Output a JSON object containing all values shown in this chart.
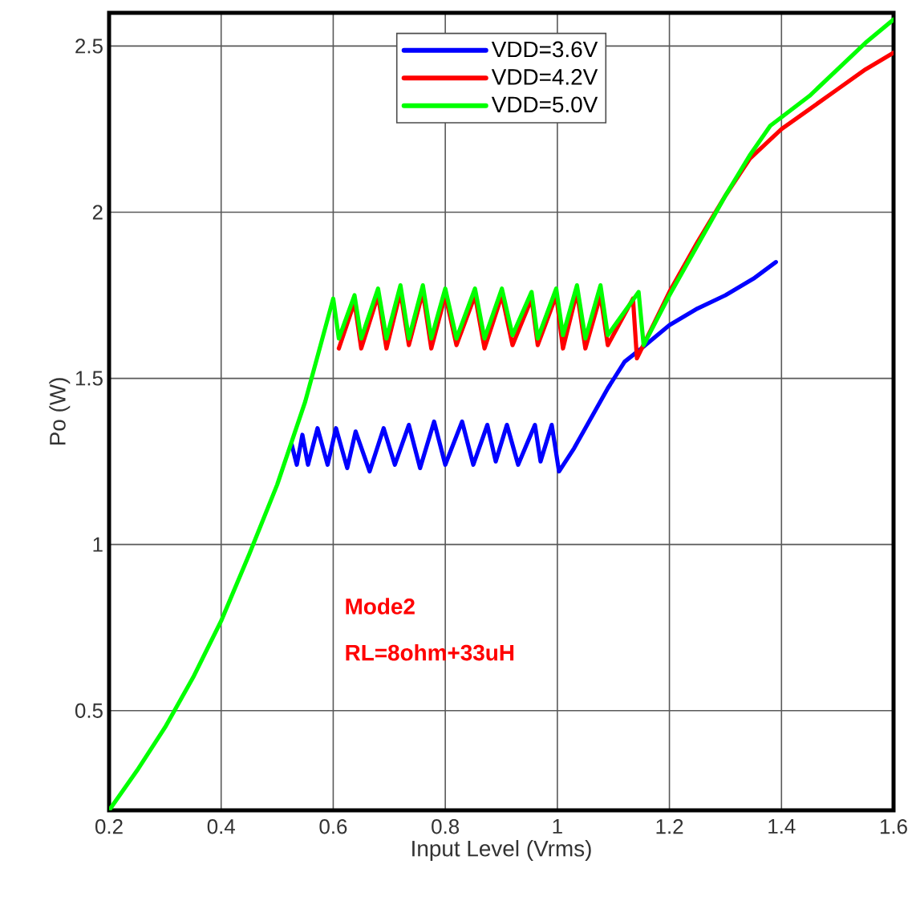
{
  "chart_data": {
    "type": "line",
    "xlabel": "Input Level (Vrms)",
    "ylabel": "Po (W)",
    "xlim": [
      0.2,
      1.6
    ],
    "ylim": [
      0.2,
      2.6
    ],
    "xticks": [
      0.2,
      0.4,
      0.6,
      0.8,
      1,
      1.2,
      1.4,
      1.6
    ],
    "yticks": [
      0.5,
      1,
      1.5,
      2,
      2.5
    ],
    "grid": true,
    "legend": "top",
    "marker": "none",
    "line_style": "solid",
    "annotations": [
      "Mode2",
      "RL=8ohm+33uH"
    ],
    "series": [
      {
        "name": "VDD=3.6V",
        "color": "#0000ff",
        "x": [
          0.526,
          0.535,
          0.545,
          0.555,
          0.572,
          0.59,
          0.605,
          0.625,
          0.64,
          0.665,
          0.69,
          0.71,
          0.735,
          0.755,
          0.78,
          0.8,
          0.83,
          0.85,
          0.875,
          0.89,
          0.91,
          0.93,
          0.96,
          0.97,
          0.99,
          1.003,
          1.03,
          1.06,
          1.09,
          1.12,
          1.15,
          1.2,
          1.25,
          1.3,
          1.35,
          1.39
        ],
        "values": [
          1.3,
          1.24,
          1.33,
          1.24,
          1.35,
          1.24,
          1.35,
          1.23,
          1.34,
          1.22,
          1.35,
          1.24,
          1.36,
          1.23,
          1.37,
          1.24,
          1.37,
          1.24,
          1.36,
          1.25,
          1.36,
          1.24,
          1.36,
          1.25,
          1.36,
          1.22,
          1.29,
          1.38,
          1.47,
          1.55,
          1.59,
          1.66,
          1.71,
          1.75,
          1.8,
          1.85
        ]
      },
      {
        "name": "VDD=4.2V",
        "color": "#ff0000",
        "x": [
          0.61,
          0.638,
          0.65,
          0.68,
          0.695,
          0.72,
          0.735,
          0.76,
          0.775,
          0.8,
          0.82,
          0.853,
          0.87,
          0.901,
          0.92,
          0.954,
          0.965,
          0.998,
          1.01,
          1.035,
          1.05,
          1.077,
          1.09,
          1.135,
          1.142,
          1.2,
          1.25,
          1.3,
          1.343,
          1.4,
          1.45,
          1.5,
          1.55,
          1.6
        ],
        "values": [
          1.59,
          1.73,
          1.59,
          1.75,
          1.59,
          1.76,
          1.6,
          1.76,
          1.59,
          1.75,
          1.6,
          1.75,
          1.59,
          1.75,
          1.6,
          1.74,
          1.6,
          1.75,
          1.59,
          1.76,
          1.59,
          1.75,
          1.6,
          1.74,
          1.56,
          1.76,
          1.91,
          2.05,
          2.16,
          2.25,
          2.31,
          2.37,
          2.43,
          2.48
        ]
      },
      {
        "name": "VDD=5.0V",
        "color": "#00ff00",
        "x": [
          0.2,
          0.25,
          0.3,
          0.35,
          0.4,
          0.45,
          0.5,
          0.55,
          0.6,
          0.61,
          0.638,
          0.65,
          0.68,
          0.695,
          0.72,
          0.735,
          0.76,
          0.775,
          0.8,
          0.82,
          0.853,
          0.87,
          0.901,
          0.92,
          0.954,
          0.965,
          0.998,
          1.01,
          1.035,
          1.05,
          1.077,
          1.09,
          1.145,
          1.154,
          1.2,
          1.25,
          1.3,
          1.343,
          1.38,
          1.45,
          1.5,
          1.55,
          1.6
        ],
        "values": [
          0.2,
          0.32,
          0.45,
          0.6,
          0.77,
          0.97,
          1.18,
          1.43,
          1.74,
          1.62,
          1.75,
          1.62,
          1.77,
          1.62,
          1.78,
          1.62,
          1.78,
          1.62,
          1.77,
          1.62,
          1.77,
          1.62,
          1.77,
          1.63,
          1.76,
          1.62,
          1.77,
          1.63,
          1.78,
          1.62,
          1.78,
          1.63,
          1.76,
          1.6,
          1.75,
          1.9,
          2.05,
          2.17,
          2.26,
          2.35,
          2.43,
          2.51,
          2.58
        ]
      }
    ]
  }
}
